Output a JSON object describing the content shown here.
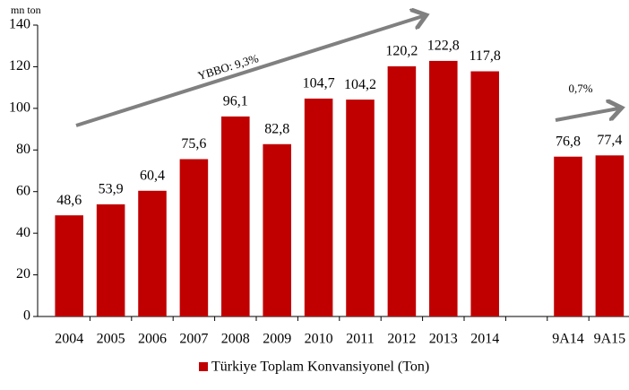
{
  "chart_data": {
    "type": "bar",
    "axis_label": "mn ton",
    "categories": [
      "2004",
      "2005",
      "2006",
      "2007",
      "2008",
      "2009",
      "2010",
      "2011",
      "2012",
      "2013",
      "2014",
      null,
      "9A14",
      "9A15"
    ],
    "series": [
      {
        "name": "Türkiye Toplam Konvansiyonel (Ton)",
        "color": "#c00000",
        "values": [
          48.6,
          53.9,
          60.4,
          75.6,
          96.1,
          82.8,
          104.7,
          104.2,
          120.2,
          122.8,
          117.8,
          null,
          76.8,
          77.4
        ],
        "value_labels": [
          "48,6",
          "53,9",
          "60,4",
          "75,6",
          "96,1",
          "82,8",
          "104,7",
          "104,2",
          "120,2",
          "122,8",
          "117,8",
          null,
          "76,8",
          "77,4"
        ]
      }
    ],
    "annotations": [
      "YBBO: 9,3%",
      "0,7%"
    ],
    "ylim": [
      0,
      140
    ],
    "yticks": [
      0,
      20,
      40,
      60,
      80,
      100,
      120,
      140
    ],
    "legend": "bottom"
  }
}
